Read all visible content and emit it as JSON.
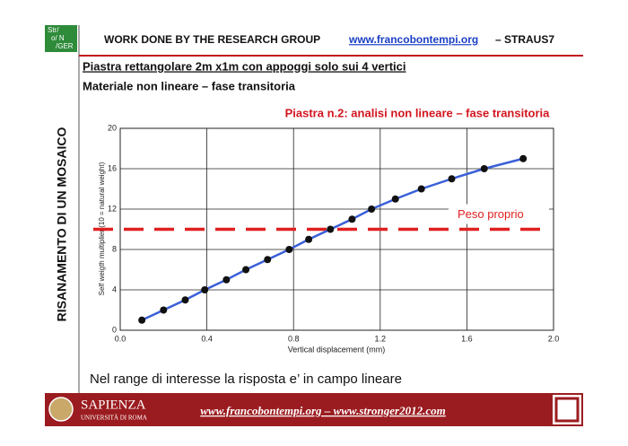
{
  "header": {
    "logo": [
      "Str/",
      "o/ N",
      "/GER"
    ],
    "text": "WORK DONE BY THE RESEARCH GROUP",
    "link": "www.francobontempi.org",
    "suffix": "– STRAUS7"
  },
  "slide": {
    "side_title": "RISANAMENTO DI UN MOSAICO",
    "title": "Piastra rettangolare 2m x1m con appoggi solo sui 4 vertici",
    "subtitle": "Materiale non lineare – fase transitoria",
    "note": "Nel range di interesse la risposta e’ in campo lineare"
  },
  "footer": {
    "university": "SAPIENZA",
    "university_sub": "UNIVERSITÀ DI ROMA",
    "links": "www.francobontempi.org – www.stronger2012.com"
  },
  "chart_data": {
    "type": "line",
    "title": "Piastra n.2: analisi non lineare – fase transitoria",
    "x_label": "Vertical displacement (mm)",
    "y_label": "Self weigth multiplier (10 = natural weight)",
    "series": [
      {
        "color": "#3a5fd8",
        "marker_color": "#111111",
        "x": [
          0.1,
          0.2,
          0.3,
          0.39,
          0.49,
          0.58,
          0.68,
          0.78,
          0.87,
          0.97,
          1.07,
          1.16,
          1.27,
          1.39,
          1.53,
          1.68,
          1.86
        ],
        "values": [
          1,
          2,
          3,
          4,
          5,
          6,
          7,
          8,
          9,
          10,
          11,
          12,
          13,
          14,
          15,
          16,
          17
        ]
      }
    ],
    "xlim": [
      0,
      2
    ],
    "ylim": [
      0,
      20
    ],
    "xticks": [
      {
        "value": 0,
        "label": "0.0"
      },
      0.4,
      0.8,
      1.2,
      1.6,
      {
        "value": 2,
        "label": "2.0"
      }
    ],
    "yticks": [
      0,
      4,
      8,
      12,
      16,
      20
    ],
    "grid": true,
    "annotations": [
      {
        "y": 10,
        "label": "Peso proprio",
        "color": "#e02020"
      }
    ]
  }
}
